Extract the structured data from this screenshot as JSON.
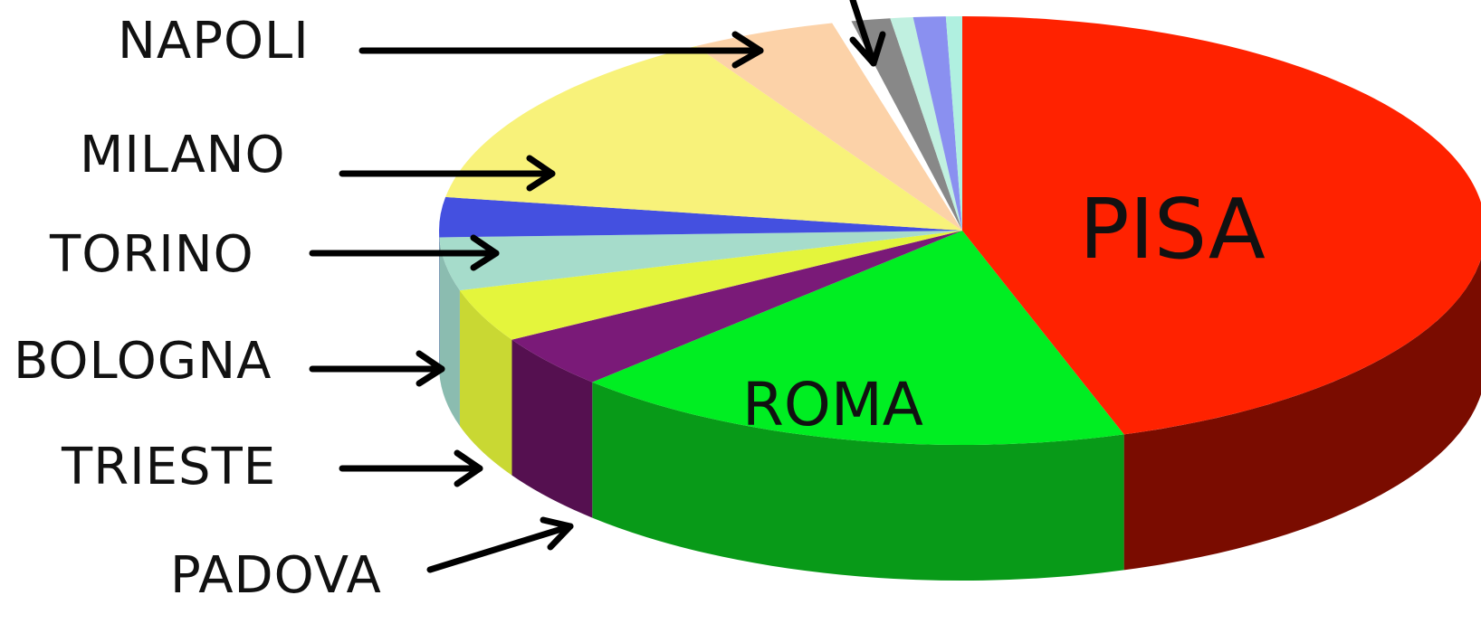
{
  "chart_data": {
    "type": "pie",
    "style": "3d",
    "title": "",
    "legend": "none",
    "slices": [
      {
        "label": "PISA",
        "value": 45.0,
        "color": "#ff2200",
        "side": "#7a0c00"
      },
      {
        "label": "ROMA",
        "value": 17.5,
        "color": "#00ee22",
        "side": "#089a18"
      },
      {
        "label": "PADOVA",
        "value": 4.0,
        "color": "#7a1a78",
        "side": "#551050"
      },
      {
        "label": "TRIESTE",
        "value": 4.0,
        "color": "#e4f53c",
        "side": "#c9d833"
      },
      {
        "label": "BOLOGNA",
        "value": 4.0,
        "color": "#a6dccb",
        "side": "#8bbcb0"
      },
      {
        "label": "TORINO",
        "value": 3.0,
        "color": "#4450e0",
        "side": "#2a2fa8"
      },
      {
        "label": "MILANO",
        "value": 14.0,
        "color": "#f8f27a",
        "side": "#d8d262"
      },
      {
        "label": "NAPOLI",
        "value": 4.5,
        "color": "#fcd2a8",
        "side": "#dcb38c"
      },
      {
        "label": "",
        "value": 0.6,
        "color": "#ffffff",
        "side": "#dddddd"
      },
      {
        "label": "",
        "value": 1.2,
        "color": "#888888",
        "side": "#444444"
      },
      {
        "label": "",
        "value": 0.7,
        "color": "#c0f0e0",
        "side": "#9fd0c0"
      },
      {
        "label": "",
        "value": 1.0,
        "color": "#8a90f0",
        "side": "#5058c0"
      },
      {
        "label": "",
        "value": 0.5,
        "color": "#b0f0e0",
        "side": "#90d0c0"
      }
    ],
    "inner_labels": [
      "PISA",
      "ROMA"
    ],
    "callout_labels": [
      "NAPOLI",
      "MILANO",
      "TORINO",
      "BOLOGNA",
      "TRIESTE",
      "PADOVA"
    ]
  }
}
